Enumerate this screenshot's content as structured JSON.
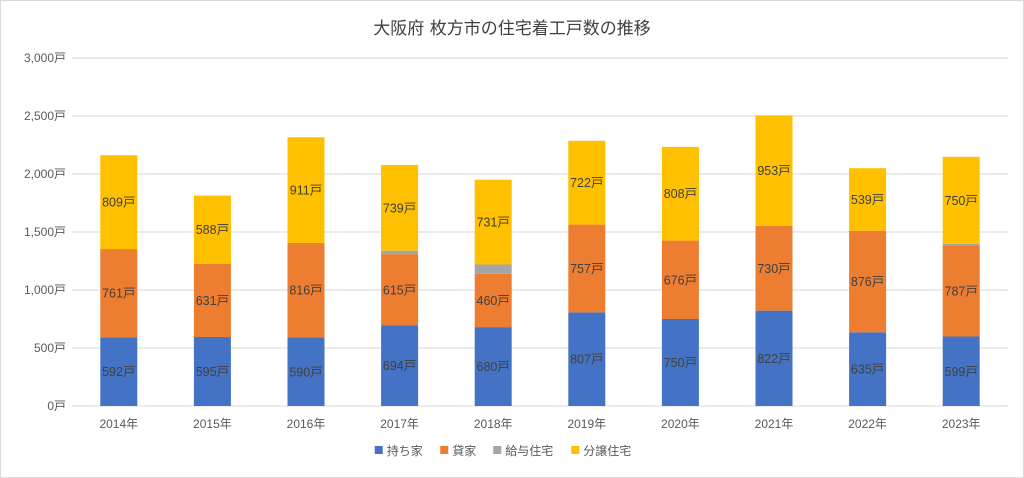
{
  "chart_data": {
    "type": "bar",
    "stacked": true,
    "title": "大阪府 枚方市の住宅着工戸数の推移",
    "categories": [
      "2014年",
      "2015年",
      "2016年",
      "2017年",
      "2018年",
      "2019年",
      "2020年",
      "2021年",
      "2022年",
      "2023年"
    ],
    "series": [
      {
        "name": "持ち家",
        "color": "#4472c4",
        "values": [
          592,
          595,
          590,
          694,
          680,
          807,
          750,
          822,
          635,
          599
        ]
      },
      {
        "name": "貸家",
        "color": "#ed7d31",
        "values": [
          761,
          631,
          816,
          615,
          460,
          757,
          676,
          730,
          876,
          787
        ]
      },
      {
        "name": "給与住宅",
        "color": "#a5a5a5",
        "values": [
          0,
          0,
          0,
          30,
          80,
          0,
          0,
          0,
          0,
          12
        ]
      },
      {
        "name": "分譲住宅",
        "color": "#ffc000",
        "values": [
          809,
          588,
          911,
          739,
          731,
          722,
          808,
          953,
          539,
          750
        ]
      }
    ],
    "data_labels": {
      "持ち家": [
        "592戸",
        "595戸",
        "590戸",
        "694戸",
        "680戸",
        "807戸",
        "750戸",
        "822戸",
        "635戸",
        "599戸"
      ],
      "貸家": [
        "761戸",
        "631戸",
        "816戸",
        "615戸",
        "460戸",
        "757戸",
        "676戸",
        "730戸",
        "876戸",
        "787戸"
      ],
      "分譲住宅": [
        "809戸",
        "588戸",
        "911戸",
        "739戸",
        "731戸",
        "722戸",
        "808戸",
        "953戸",
        "539戸",
        "750戸"
      ]
    },
    "ylim": [
      0,
      3000
    ],
    "yticks": [
      0,
      500,
      1000,
      1500,
      2000,
      2500,
      3000
    ],
    "ytick_labels": [
      "0戸",
      "500戸",
      "1,000戸",
      "1,500戸",
      "2,000戸",
      "2,500戸",
      "3,000戸"
    ],
    "grid": true,
    "legend_position": "bottom"
  }
}
